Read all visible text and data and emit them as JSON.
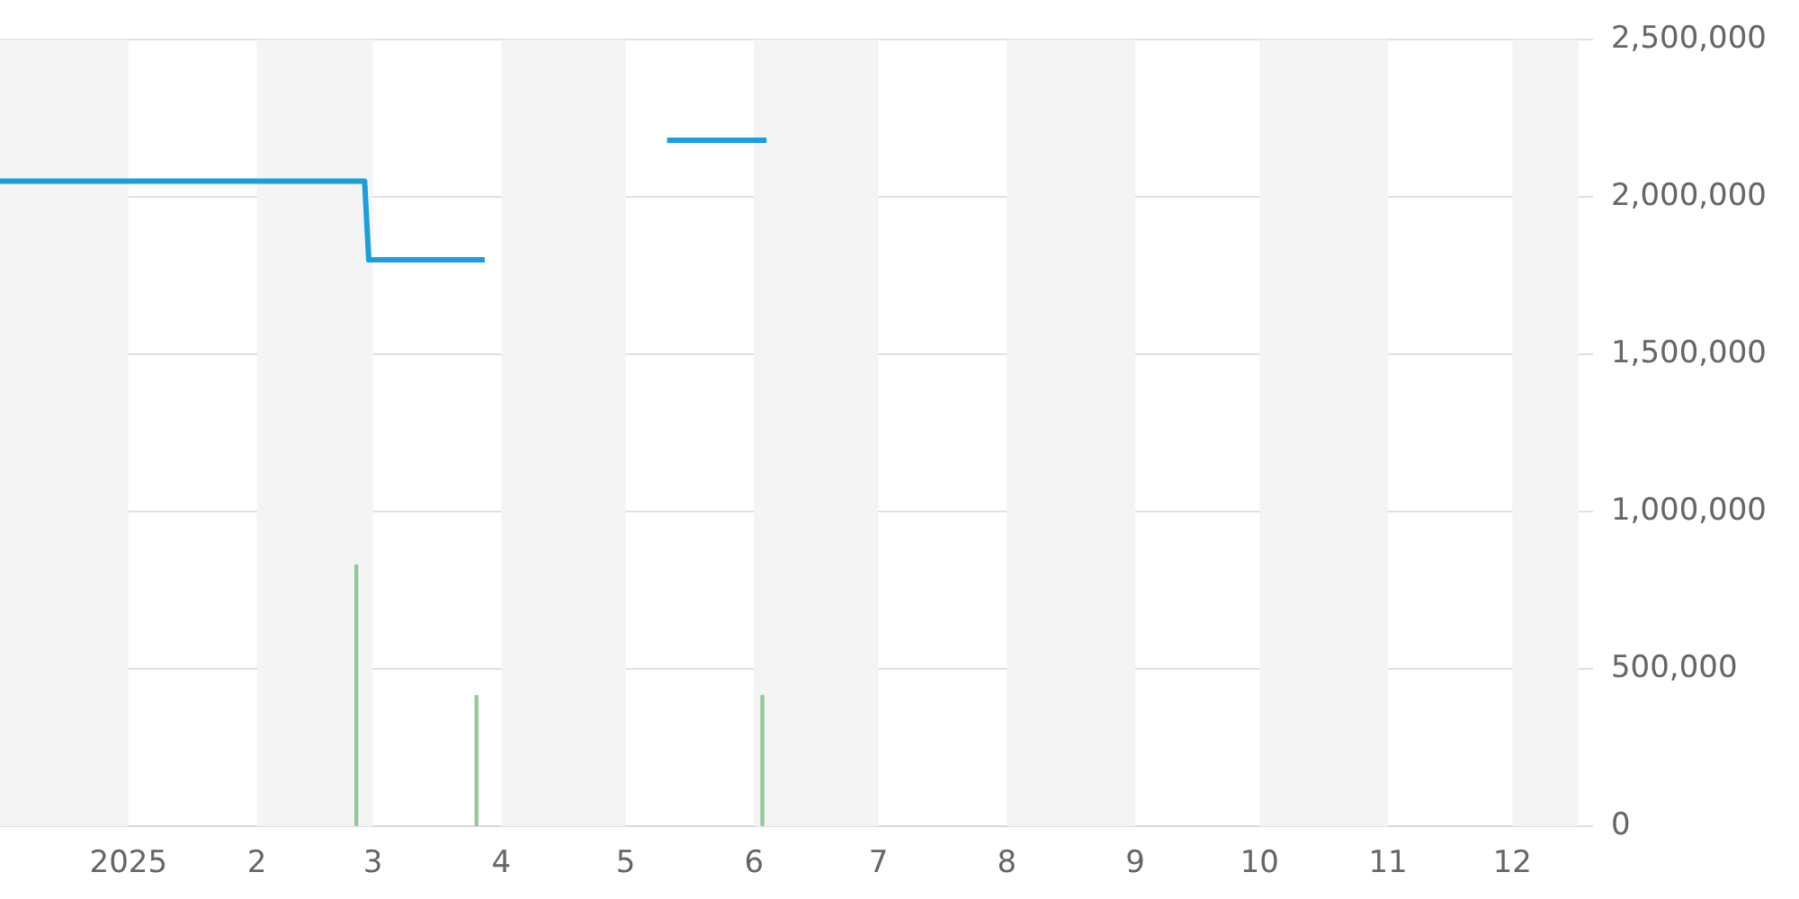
{
  "chart_data": {
    "type": "line",
    "xlim": [
      "2024-12-01",
      "2025-12-17"
    ],
    "xticks": [
      {
        "value": "2025-01-01",
        "label": "2025"
      },
      {
        "value": "2025-02-01",
        "label": "2"
      },
      {
        "value": "2025-03-01",
        "label": "3"
      },
      {
        "value": "2025-04-01",
        "label": "4"
      },
      {
        "value": "2025-05-01",
        "label": "5"
      },
      {
        "value": "2025-06-01",
        "label": "6"
      },
      {
        "value": "2025-07-01",
        "label": "7"
      },
      {
        "value": "2025-08-01",
        "label": "8"
      },
      {
        "value": "2025-09-01",
        "label": "9"
      },
      {
        "value": "2025-10-01",
        "label": "10"
      },
      {
        "value": "2025-11-01",
        "label": "11"
      },
      {
        "value": "2025-12-01",
        "label": "12"
      }
    ],
    "ylim": [
      0,
      2500000
    ],
    "yticks": [
      {
        "value": 0,
        "label": "0"
      },
      {
        "value": 500000,
        "label": "500,000"
      },
      {
        "value": 1000000,
        "label": "1,000,000"
      },
      {
        "value": 1500000,
        "label": "1,500,000"
      },
      {
        "value": 2000000,
        "label": "2,000,000"
      },
      {
        "value": 2500000,
        "label": "2,500,000"
      }
    ],
    "series": [
      {
        "color": "#1a9ee0",
        "x": [
          "2024-12-01",
          "2025-02-27",
          "2025-02-28",
          "2025-03-28",
          "2025-04-20",
          "2025-05-11",
          "2025-06-04"
        ],
        "values": [
          2050000,
          2050000,
          1800000,
          1800000,
          null,
          2180000,
          2180000
        ]
      },
      {
        "type": "bar",
        "color": "#8fc79a",
        "x": [
          "2025-02-25",
          "2025-03-26",
          "2025-06-03"
        ],
        "values": [
          830000,
          415000,
          415000
        ]
      }
    ],
    "bands": [
      {
        "axis": "x",
        "from": "2024-12-01",
        "to": "2025-01-01",
        "color": "#f4f4f4"
      },
      {
        "axis": "x",
        "from": "2025-02-01",
        "to": "2025-03-01",
        "color": "#f4f4f4"
      },
      {
        "axis": "x",
        "from": "2025-04-01",
        "to": "2025-05-01",
        "color": "#f4f4f4"
      },
      {
        "axis": "x",
        "from": "2025-06-01",
        "to": "2025-07-01",
        "color": "#f4f4f4"
      },
      {
        "axis": "x",
        "from": "2025-08-01",
        "to": "2025-09-01",
        "color": "#f4f4f4"
      },
      {
        "axis": "x",
        "from": "2025-10-01",
        "to": "2025-11-01",
        "color": "#f4f4f4"
      },
      {
        "axis": "x",
        "from": "2025-12-01",
        "to": "2025-12-17",
        "color": "#f4f4f4"
      }
    ],
    "grid": "y",
    "legend": false,
    "marker": "none",
    "line_style": "solid"
  }
}
